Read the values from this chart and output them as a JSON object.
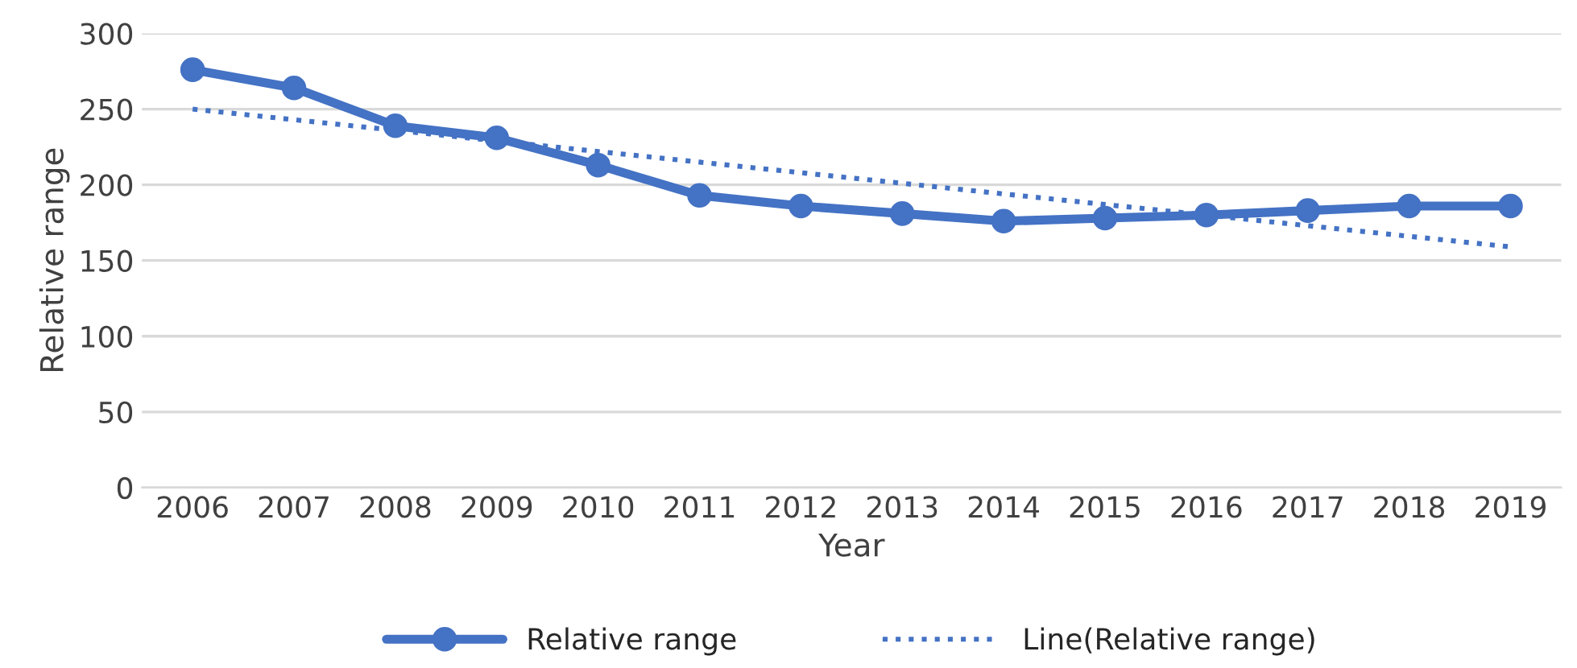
{
  "chart_data": {
    "type": "line",
    "xlabel": "Year",
    "ylabel": "Relative range",
    "categories": [
      "2006",
      "2007",
      "2008",
      "2009",
      "2010",
      "2011",
      "2012",
      "2013",
      "2014",
      "2015",
      "2016",
      "2017",
      "2018",
      "2019"
    ],
    "series": [
      {
        "name": "Relative range",
        "color": "#4472c4",
        "marker": "circle",
        "line_style": "solid",
        "values": [
          276,
          264,
          239,
          231,
          213,
          193,
          186,
          181,
          176,
          178,
          180,
          183,
          186,
          186
        ]
      },
      {
        "name": "Line(Relative range)",
        "type": "line",
        "color": "#4472c4",
        "marker": "none",
        "line_style": "dotted",
        "values": [
          250,
          243,
          236,
          229,
          222,
          215,
          208,
          201,
          194,
          187,
          180,
          173,
          166,
          159
        ]
      }
    ],
    "ylim": [
      0,
      300
    ],
    "yticks": [
      0,
      50,
      100,
      150,
      200,
      250,
      300
    ],
    "grid": "y",
    "legend": "bottom"
  }
}
